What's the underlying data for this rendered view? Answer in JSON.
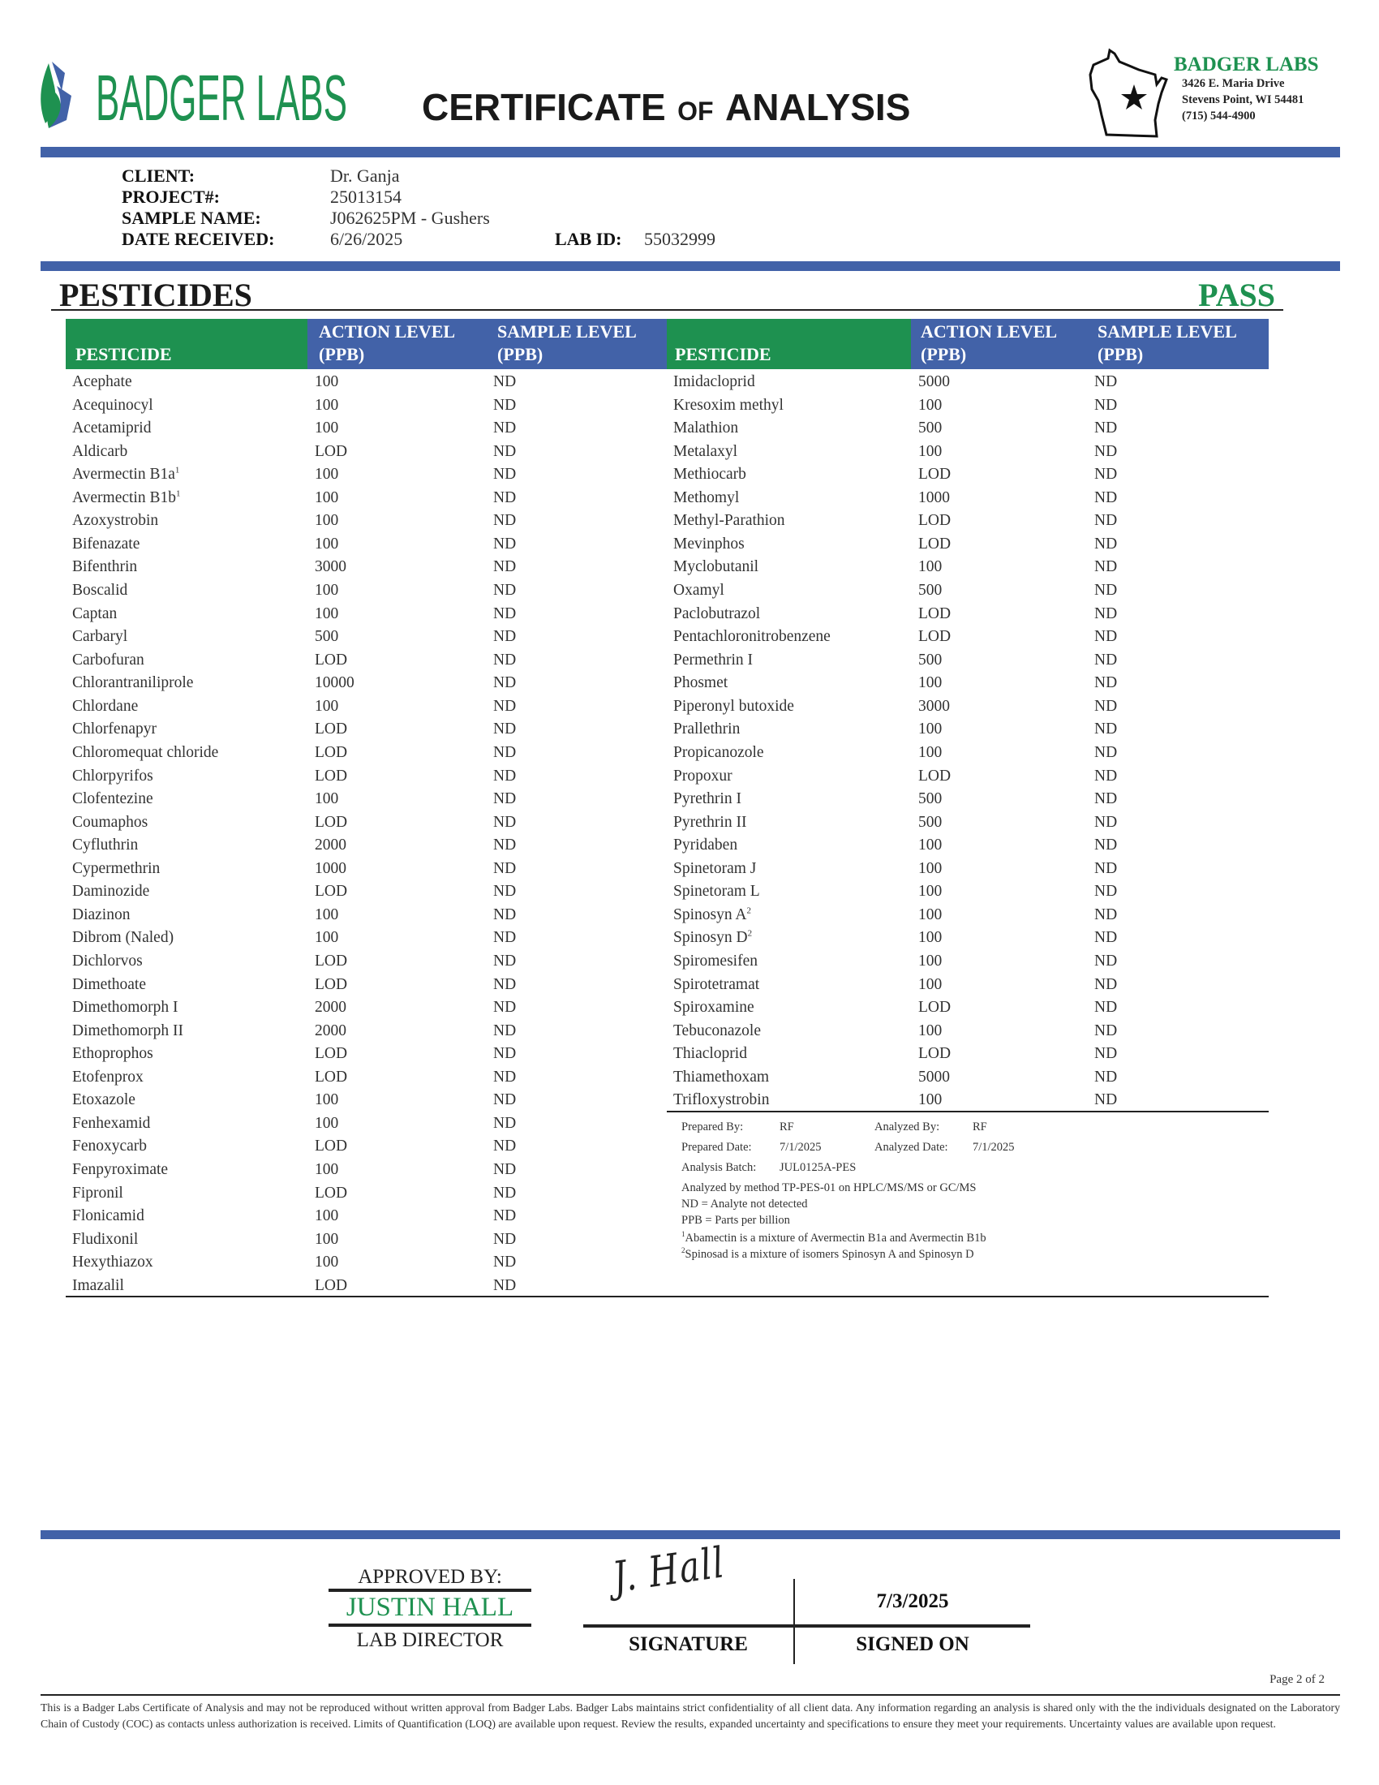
{
  "header": {
    "logo_text": "BADGER LABS",
    "title_main_1": "CERTIFICATE",
    "title_of": "OF",
    "title_main_2": "ANALYSIS",
    "lab_name": "BADGER LABS",
    "address_line1": "3426 E. Maria Drive",
    "address_line2": "Stevens Point, WI 54481",
    "phone": "(715) 544-4900"
  },
  "colors": {
    "green": "#1e9150",
    "blue": "#4262a8"
  },
  "info": {
    "client_label": "CLIENT:",
    "client": "Dr. Ganja",
    "project_label": "PROJECT#:",
    "project": "25013154",
    "sample_label": "SAMPLE NAME:",
    "sample": "J062625PM - Gushers",
    "date_label": "DATE RECEIVED:",
    "date": "6/26/2025",
    "labid_label": "LAB ID:",
    "labid": "55032999"
  },
  "section": {
    "title": "PESTICIDES",
    "result": "PASS"
  },
  "table": {
    "col1": "PESTICIDE",
    "col2_l1": "ACTION LEVEL",
    "col2_l2": "(PPB)",
    "col3_l1": "SAMPLE LEVEL",
    "col3_l2": "(PPB)",
    "left_rows": [
      {
        "name": "Acephate",
        "action": "100",
        "sample": "ND"
      },
      {
        "name": "Acequinocyl",
        "action": "100",
        "sample": "ND"
      },
      {
        "name": "Acetamiprid",
        "action": "100",
        "sample": "ND"
      },
      {
        "name": "Aldicarb",
        "action": "LOD",
        "sample": "ND"
      },
      {
        "name": "Avermectin B1a",
        "sup": "1",
        "action": "100",
        "sample": "ND"
      },
      {
        "name": "Avermectin B1b",
        "sup": "1",
        "action": "100",
        "sample": "ND"
      },
      {
        "name": "Azoxystrobin",
        "action": "100",
        "sample": "ND"
      },
      {
        "name": "Bifenazate",
        "action": "100",
        "sample": "ND"
      },
      {
        "name": "Bifenthrin",
        "action": "3000",
        "sample": "ND"
      },
      {
        "name": "Boscalid",
        "action": "100",
        "sample": "ND"
      },
      {
        "name": "Captan",
        "action": "100",
        "sample": "ND"
      },
      {
        "name": "Carbaryl",
        "action": "500",
        "sample": "ND"
      },
      {
        "name": "Carbofuran",
        "action": "LOD",
        "sample": "ND"
      },
      {
        "name": "Chlorantraniliprole",
        "action": "10000",
        "sample": "ND"
      },
      {
        "name": "Chlordane",
        "action": "100",
        "sample": "ND"
      },
      {
        "name": "Chlorfenapyr",
        "action": "LOD",
        "sample": "ND"
      },
      {
        "name": "Chloromequat chloride",
        "action": "LOD",
        "sample": "ND"
      },
      {
        "name": "Chlorpyrifos",
        "action": "LOD",
        "sample": "ND"
      },
      {
        "name": "Clofentezine",
        "action": "100",
        "sample": "ND"
      },
      {
        "name": "Coumaphos",
        "action": "LOD",
        "sample": "ND"
      },
      {
        "name": "Cyfluthrin",
        "action": "2000",
        "sample": "ND"
      },
      {
        "name": "Cypermethrin",
        "action": "1000",
        "sample": "ND"
      },
      {
        "name": "Daminozide",
        "action": "LOD",
        "sample": "ND"
      },
      {
        "name": "Diazinon",
        "action": "100",
        "sample": "ND"
      },
      {
        "name": "Dibrom (Naled)",
        "action": "100",
        "sample": "ND"
      },
      {
        "name": "Dichlorvos",
        "action": "LOD",
        "sample": "ND"
      },
      {
        "name": "Dimethoate",
        "action": "LOD",
        "sample": "ND"
      },
      {
        "name": "Dimethomorph I",
        "action": "2000",
        "sample": "ND"
      },
      {
        "name": "Dimethomorph II",
        "action": "2000",
        "sample": "ND"
      },
      {
        "name": "Ethoprophos",
        "action": "LOD",
        "sample": "ND"
      },
      {
        "name": "Etofenprox",
        "action": "LOD",
        "sample": "ND"
      },
      {
        "name": "Etoxazole",
        "action": "100",
        "sample": "ND"
      },
      {
        "name": "Fenhexamid",
        "action": "100",
        "sample": "ND"
      },
      {
        "name": "Fenoxycarb",
        "action": "LOD",
        "sample": "ND"
      },
      {
        "name": "Fenpyroximate",
        "action": "100",
        "sample": "ND"
      },
      {
        "name": "Fipronil",
        "action": "LOD",
        "sample": "ND"
      },
      {
        "name": "Flonicamid",
        "action": "100",
        "sample": "ND"
      },
      {
        "name": "Fludixonil",
        "action": "100",
        "sample": "ND"
      },
      {
        "name": "Hexythiazox",
        "action": "100",
        "sample": "ND"
      },
      {
        "name": "Imazalil",
        "action": "LOD",
        "sample": "ND"
      }
    ],
    "right_rows": [
      {
        "name": "Imidacloprid",
        "action": "5000",
        "sample": "ND"
      },
      {
        "name": "Kresoxim methyl",
        "action": "100",
        "sample": "ND"
      },
      {
        "name": "Malathion",
        "action": "500",
        "sample": "ND"
      },
      {
        "name": "Metalaxyl",
        "action": "100",
        "sample": "ND"
      },
      {
        "name": "Methiocarb",
        "action": "LOD",
        "sample": "ND"
      },
      {
        "name": "Methomyl",
        "action": "1000",
        "sample": "ND"
      },
      {
        "name": "Methyl-Parathion",
        "action": "LOD",
        "sample": "ND"
      },
      {
        "name": "Mevinphos",
        "action": "LOD",
        "sample": "ND"
      },
      {
        "name": "Myclobutanil",
        "action": "100",
        "sample": "ND"
      },
      {
        "name": "Oxamyl",
        "action": "500",
        "sample": "ND"
      },
      {
        "name": "Paclobutrazol",
        "action": "LOD",
        "sample": "ND"
      },
      {
        "name": "Pentachloronitrobenzene",
        "action": "LOD",
        "sample": "ND"
      },
      {
        "name": "Permethrin I",
        "action": "500",
        "sample": "ND"
      },
      {
        "name": "Phosmet",
        "action": "100",
        "sample": "ND"
      },
      {
        "name": "Piperonyl butoxide",
        "action": "3000",
        "sample": "ND"
      },
      {
        "name": "Prallethrin",
        "action": "100",
        "sample": "ND"
      },
      {
        "name": "Propicanozole",
        "action": "100",
        "sample": "ND"
      },
      {
        "name": "Propoxur",
        "action": "LOD",
        "sample": "ND"
      },
      {
        "name": "Pyrethrin I",
        "action": "500",
        "sample": "ND"
      },
      {
        "name": "Pyrethrin II",
        "action": "500",
        "sample": "ND"
      },
      {
        "name": "Pyridaben",
        "action": "100",
        "sample": "ND"
      },
      {
        "name": "Spinetoram J",
        "action": "100",
        "sample": "ND"
      },
      {
        "name": "Spinetoram L",
        "action": "100",
        "sample": "ND"
      },
      {
        "name": "Spinosyn A",
        "sup": "2",
        "action": "100",
        "sample": "ND"
      },
      {
        "name": "Spinosyn D",
        "sup": "2",
        "action": "100",
        "sample": "ND"
      },
      {
        "name": "Spiromesifen",
        "action": "100",
        "sample": "ND"
      },
      {
        "name": "Spirotetramat",
        "action": "100",
        "sample": "ND"
      },
      {
        "name": "Spiroxamine",
        "action": "LOD",
        "sample": "ND"
      },
      {
        "name": "Tebuconazole",
        "action": "100",
        "sample": "ND"
      },
      {
        "name": "Thiacloprid",
        "action": "LOD",
        "sample": "ND"
      },
      {
        "name": "Thiamethoxam",
        "action": "5000",
        "sample": "ND"
      },
      {
        "name": "Trifloxystrobin",
        "action": "100",
        "sample": "ND"
      }
    ]
  },
  "notes": {
    "prepared_by_label": "Prepared By:",
    "prepared_by": "RF",
    "analyzed_by_label": "Analyzed By:",
    "analyzed_by": "RF",
    "prepared_date_label": "Prepared Date:",
    "prepared_date": "7/1/2025",
    "analyzed_date_label": "Analyzed Date:",
    "analyzed_date": "7/1/2025",
    "batch_label": "Analysis Batch:",
    "batch": "JUL0125A-PES",
    "method": "Analyzed by method TP-PES-01 on HPLC/MS/MS or GC/MS",
    "nd": "ND = Analyte not detected",
    "ppb": "PPB = Parts per billion",
    "fn1_mark": "1",
    "fn1": "Abamectin is a mixture of  Avermectin B1a and Avermectin B1b",
    "fn2_mark": "2",
    "fn2": "Spinosad is a mixture of  isomers Spinosyn A and Spinosyn D"
  },
  "approval": {
    "approved_by": "APPROVED BY:",
    "name": "JUSTIN HALL",
    "role": "LAB DIRECTOR",
    "signature_handwriting": "J. Hall",
    "signed_date": "7/3/2025",
    "signature_label": "SIGNATURE",
    "signed_on_label": "SIGNED ON"
  },
  "footer": {
    "page": "Page 2 of 2",
    "disclaimer": "This is a Badger Labs Certificate of Analysis and may not be reproduced without written approval from Badger Labs. Badger Labs maintains strict confidentiality of all client data. Any information regarding an analysis is shared only with the the individuals designated on the Laboratory Chain of Custody (COC) as contacts unless authorization is received. Limits of Quantification (LOQ) are available upon request. Review the results, expanded uncertainty and specifications to ensure they meet your requirements. Uncertainty values are available upon request."
  }
}
